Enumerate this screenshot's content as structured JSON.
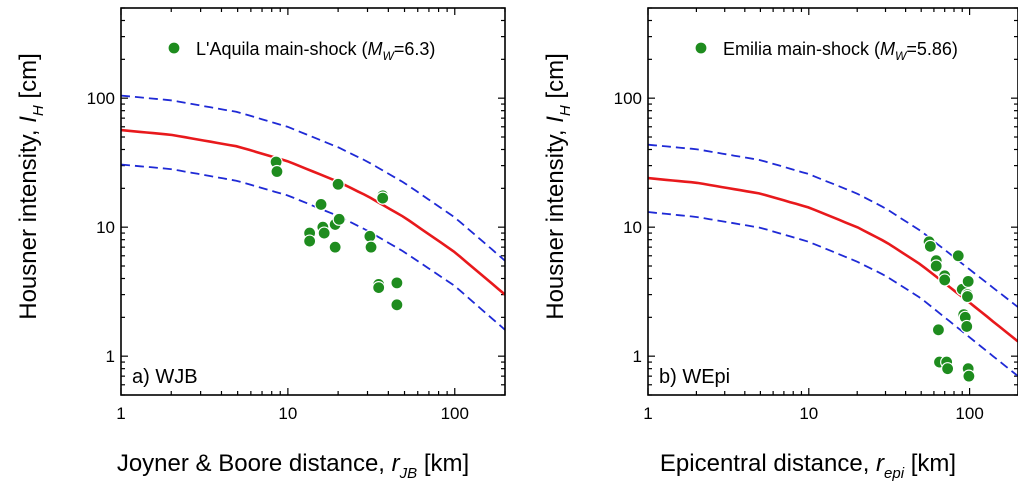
{
  "colors": {
    "median": "#e8191c",
    "bounds": "#1f2ad6",
    "marker": "#1e8c1e",
    "axis": "#000000"
  },
  "chart_data": [
    {
      "type": "scatter",
      "panel_label": "a) WJB",
      "xlabel": "Joyner & Boore distance, ",
      "xlabel_symbol": "r",
      "xlabel_sub": "JB",
      "xlabel_unit": " [km]",
      "ylabel": "Housner intensity, ",
      "ylabel_symbol": "I",
      "ylabel_sub": "H",
      "ylabel_unit": " [cm]",
      "x_scale": "log",
      "y_scale": "log",
      "xlim": [
        1,
        200
      ],
      "ylim": [
        0.5,
        500
      ],
      "xticks": [
        1,
        10,
        100
      ],
      "xtick_labels": [
        "1",
        "10",
        "100"
      ],
      "yticks": [
        1,
        10,
        100
      ],
      "ytick_labels": [
        "1",
        "10",
        "100"
      ],
      "legend": {
        "text": "L'Aquila main-shock (",
        "sym": "M",
        "sub": "W",
        "rest": "=6.3)",
        "placement": "top"
      },
      "median_curve": {
        "x": [
          1,
          2,
          5,
          10,
          20,
          30,
          50,
          100,
          200
        ],
        "y": [
          56.6,
          52.0,
          42.2,
          32.4,
          22.5,
          17.4,
          11.9,
          6.4,
          3.0
        ]
      },
      "lower_curve": {
        "x": [
          1,
          2,
          5,
          10,
          20,
          30,
          50,
          100,
          200
        ],
        "y": [
          30.6,
          28.2,
          22.8,
          17.6,
          12.2,
          9.4,
          6.4,
          3.5,
          1.6
        ]
      },
      "upper_curve": {
        "x": [
          1,
          2,
          5,
          10,
          20,
          30,
          50,
          100,
          200
        ],
        "y": [
          104.6,
          96.2,
          78.0,
          59.9,
          41.6,
          32.2,
          22.0,
          11.9,
          5.5
        ]
      },
      "points": [
        {
          "x": 8.5,
          "y": 32
        },
        {
          "x": 8.6,
          "y": 27
        },
        {
          "x": 13.5,
          "y": 9.0
        },
        {
          "x": 13.5,
          "y": 7.8
        },
        {
          "x": 15.8,
          "y": 15.0
        },
        {
          "x": 16.2,
          "y": 10.0
        },
        {
          "x": 16.5,
          "y": 9.0
        },
        {
          "x": 19.2,
          "y": 10.5
        },
        {
          "x": 19.2,
          "y": 7.0
        },
        {
          "x": 20.0,
          "y": 21.5
        },
        {
          "x": 20.3,
          "y": 11.5
        },
        {
          "x": 31.0,
          "y": 8.5
        },
        {
          "x": 31.5,
          "y": 7.0
        },
        {
          "x": 35.0,
          "y": 3.6
        },
        {
          "x": 35.0,
          "y": 3.4
        },
        {
          "x": 37.0,
          "y": 17.5
        },
        {
          "x": 37.0,
          "y": 16.8
        },
        {
          "x": 45.0,
          "y": 3.7
        },
        {
          "x": 45.0,
          "y": 2.5
        }
      ]
    },
    {
      "type": "scatter",
      "panel_label": "b) WEpi",
      "xlabel": "Epicentral distance, ",
      "xlabel_symbol": "r",
      "xlabel_sub": "epi",
      "xlabel_unit": " [km]",
      "ylabel": "Housner intensity, ",
      "ylabel_symbol": "I",
      "ylabel_sub": "H",
      "ylabel_unit": " [cm]",
      "x_scale": "log",
      "y_scale": "log",
      "xlim": [
        1,
        200
      ],
      "ylim": [
        0.5,
        500
      ],
      "xticks": [
        1,
        10,
        100
      ],
      "xtick_labels": [
        "1",
        "10",
        "100"
      ],
      "yticks": [
        1,
        10,
        100
      ],
      "ytick_labels": [
        "1",
        "10",
        "100"
      ],
      "legend": {
        "text": "Emilia main-shock (",
        "sym": "M",
        "sub": "W",
        "rest": "=5.86)",
        "placement": "top"
      },
      "median_curve": {
        "x": [
          1,
          2,
          5,
          10,
          20,
          30,
          50,
          100,
          200
        ],
        "y": [
          24.0,
          22.1,
          18.2,
          14.2,
          10.0,
          7.7,
          5.1,
          2.6,
          1.3
        ]
      },
      "lower_curve": {
        "x": [
          1,
          2,
          5,
          10,
          20,
          30,
          50,
          100,
          200
        ],
        "y": [
          13.1,
          12.0,
          9.9,
          7.7,
          5.4,
          4.2,
          2.8,
          1.4,
          0.7
        ]
      },
      "upper_curve": {
        "x": [
          1,
          2,
          5,
          10,
          20,
          30,
          50,
          100,
          200
        ],
        "y": [
          43.6,
          40.2,
          33.1,
          25.8,
          18.2,
          14.0,
          9.3,
          4.7,
          2.4
        ]
      },
      "points": [
        {
          "x": 56,
          "y": 7.7
        },
        {
          "x": 57,
          "y": 7.1
        },
        {
          "x": 62,
          "y": 5.5
        },
        {
          "x": 62,
          "y": 5.0
        },
        {
          "x": 64,
          "y": 1.6
        },
        {
          "x": 65,
          "y": 0.9
        },
        {
          "x": 70,
          "y": 4.2
        },
        {
          "x": 70,
          "y": 3.9
        },
        {
          "x": 72,
          "y": 0.9
        },
        {
          "x": 73,
          "y": 0.8
        },
        {
          "x": 85,
          "y": 6.0
        },
        {
          "x": 90,
          "y": 3.3
        },
        {
          "x": 92,
          "y": 2.1
        },
        {
          "x": 94,
          "y": 2.0
        },
        {
          "x": 96,
          "y": 1.7
        },
        {
          "x": 97,
          "y": 3.0
        },
        {
          "x": 97,
          "y": 2.9
        },
        {
          "x": 98,
          "y": 3.8
        },
        {
          "x": 98,
          "y": 0.8
        },
        {
          "x": 99,
          "y": 0.7
        }
      ]
    }
  ]
}
